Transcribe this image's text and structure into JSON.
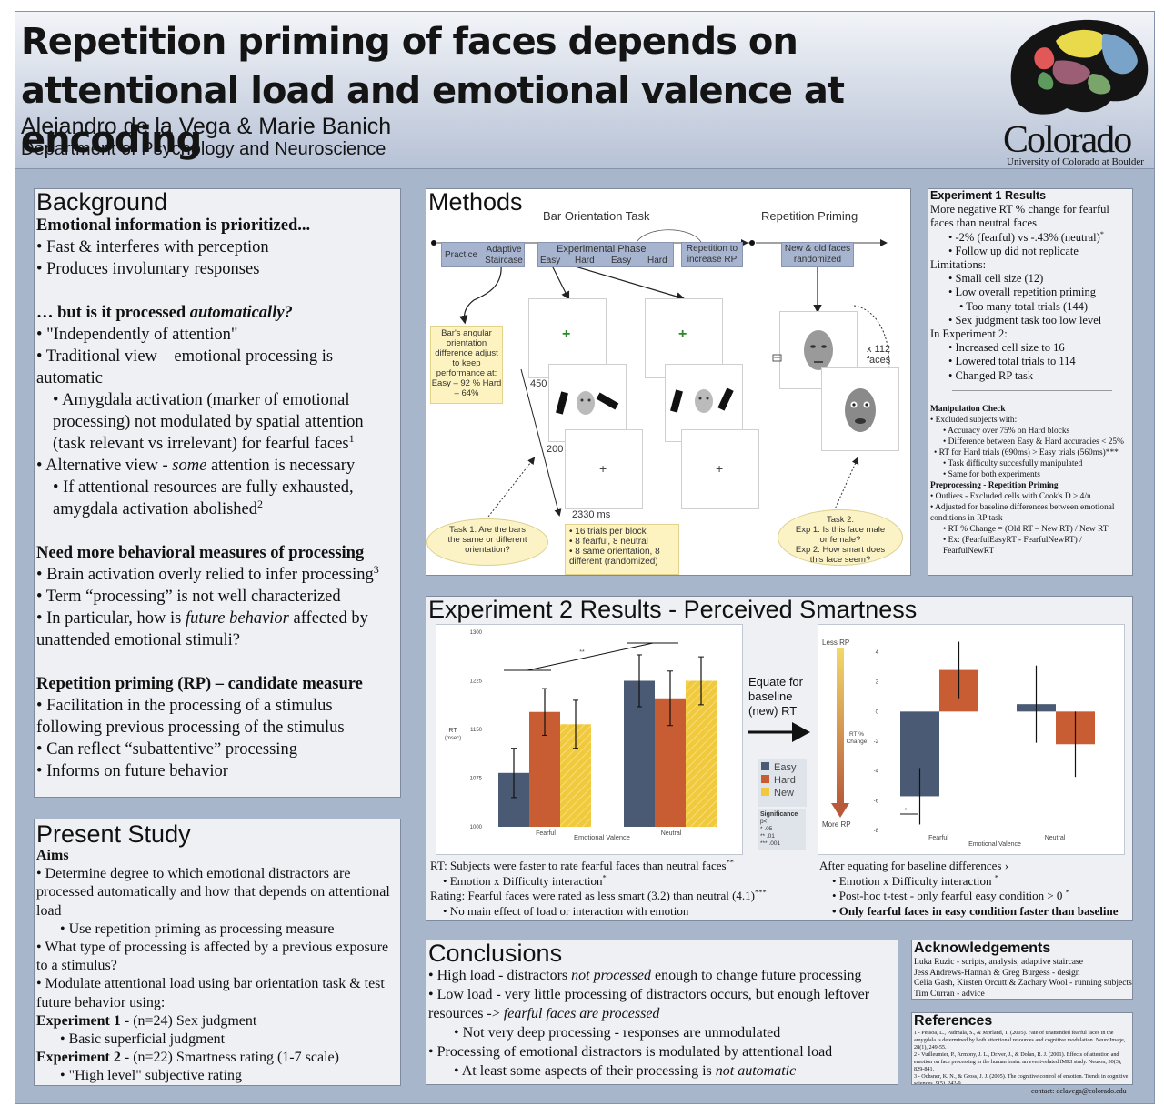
{
  "header": {
    "title": "Repetition priming of faces depends on attentional load and emotional valence at encoding",
    "authors": "Alejandro de la Vega & Marie Banich",
    "department": "Department of Psychology and Neuroscience",
    "logo_word": "Colorado",
    "logo_sub": "University of Colorado at Boulder"
  },
  "background": {
    "heading": "Background",
    "s1": "Emotional information is prioritized...",
    "s1_b1": "• Fast & interferes with perception",
    "s1_b2": "• Produces involuntary responses",
    "s2_pre": "… but is it processed ",
    "s2_em": "automatically?",
    "s2_b1": "• \"Independently of attention\"",
    "s2_b2": "• Traditional view – emotional processing is automatic",
    "s2_b3": "• Amygdala activation (marker of emotional processing) not modulated by spatial attention (task relevant vs irrelevant) for fearful faces",
    "s2_b3_sup": "1",
    "s2_b4_pre": "• Alternative view - ",
    "s2_b4_em": "some",
    "s2_b4_post": " attention is necessary",
    "s2_b5": "• If attentional resources are fully exhausted, amygdala activation abolished",
    "s2_b5_sup": "2",
    "s3": "Need more behavioral measures of processing",
    "s3_b1": "• Brain activation overly relied to infer processing",
    "s3_b1_sup": "3",
    "s3_b2": "• Term “processing” is not well characterized",
    "s3_b3_pre": "• In particular, how is ",
    "s3_b3_em": "future behavior",
    "s3_b3_post": " affected by unattended emotional stimuli?",
    "s4": "Repetition priming (RP) – candidate measure",
    "s4_b1": "• Facilitation in the processing of a stimulus following previous processing of the stimulus",
    "s4_b2": "• Can reflect “subattentive” processing",
    "s4_b3": "• Informs on future behavior"
  },
  "present_study": {
    "heading": "Present Study",
    "aims": "Aims",
    "a1": "• Determine degree to which emotional distractors are processed automatically and how that depends on attentional load",
    "a1_sub": "• Use repetition priming as processing measure",
    "a2": "• What type of processing is affected by a previous exposure to a stimulus?",
    "a3": "• Modulate attentional load using bar orientation task & test future behavior using:",
    "e1_label": "Experiment 1",
    "e1_text": " - (n=24) Sex judgment",
    "e1_sub": "• Basic superficial judgment",
    "e2_label": "Experiment 2",
    "e2_text": " - (n=22) Smartness rating (1-7 scale)",
    "e2_sub": "• \"High level\" subjective rating"
  },
  "methods": {
    "heading": "Methods",
    "bar_task": "Bar Orientation Task",
    "rep_priming": "Repetition Priming",
    "practice": "Practice",
    "adaptive": "Adaptive Staircase",
    "exp_phase": "Experimental Phase",
    "easy": "Easy",
    "hard": "Hard",
    "rep_increase": "Repetition to increase RP",
    "new_old": "New & old faces randomized",
    "yellow_box": "Bar's angular orientation difference adjust to keep performance at: Easy – 92 % Hard – 64%",
    "t450": "450",
    "t200": "200",
    "t2330": "2330 ms",
    "x112": "x 112 faces",
    "trials_b1": "• 16 trials per block",
    "trials_b2": "• 8 fearful, 8 neutral",
    "trials_b3": "• 8 same orientation, 8 different (randomized)",
    "task1": "Task 1: Are the bars the same or different orientation?",
    "task2_l1": "Task 2:",
    "task2_l2": "Exp 1: Is this face male or female?",
    "task2_l3": "Exp 2: How smart does this face seem?",
    "plus": "+"
  },
  "exp1": {
    "heading": "Experiment 1 Results",
    "l1": "More negative RT % change for fearful faces than neutral faces",
    "l2": "• -2% (fearful) vs -.43% (neutral)",
    "l2_sup": "*",
    "l3": "• Follow up did not replicate",
    "l4": "Limitations:",
    "l5": "• Small cell size (12)",
    "l6": "• Low overall repetition priming",
    "l7": "• Too many total trials (144)",
    "l8": "• Sex judgment task too low level",
    "l9": "In Experiment 2:",
    "l10": "• Increased cell size to 16",
    "l11": "• Lowered total trials to 114",
    "l12": "• Changed RP task",
    "mc_head": "Manipulation Check",
    "mc1": "• Excluded subjects with:",
    "mc2": "• Accuracy over 75% on Hard blocks",
    "mc3": "• Difference between Easy & Hard accuracies < 25%",
    "mc4": "• RT for Hard trials (690ms) > Easy trials (560ms)***",
    "mc5": "• Task difficulty succesfully manipulated",
    "mc6": "• Same for both experiments",
    "pp_head": "Preprocessing - Repetition Priming",
    "pp1": "• Outliers - Excluded cells with Cook's D > 4/n",
    "pp2": "• Adjusted for baseline differences between emotional conditions in RP task",
    "pp3": "• RT % Change = (Old RT – New RT) / New RT",
    "pp4": "• Ex: (FearfulEasyRT - FearfulNewRT) / FearfulNewRT"
  },
  "exp2": {
    "heading": "Experiment 2 Results - Perceived Smartness",
    "equate": "Equate for baseline (new) RT",
    "legend": [
      "Easy",
      "Hard",
      "New"
    ],
    "sig_title": "Significance",
    "sig_lines": [
      "p<",
      "* .05",
      "** .01",
      "*** .001"
    ],
    "left_cap_1": "RT:  Subjects were faster to rate fearful faces than neutral faces",
    "left_cap_1_sup": "**",
    "left_cap_2": "• Emotion x Difficulty interaction",
    "left_cap_2_sup": "*",
    "left_cap_3": "Rating: Fearful faces were rated as less smart (3.2) than neutral (4.1)",
    "left_cap_3_sup": "***",
    "left_cap_4": "• No main effect of load or interaction with emotion",
    "right_cap_1": "After equating for baseline differences ›",
    "right_cap_2": "• Emotion x Difficulty interaction ",
    "right_cap_2_sup": "*",
    "right_cap_3": "• Post-hoc t-test - only fearful easy condition > 0 ",
    "right_cap_3_sup": "*",
    "right_cap_4": "• Only fearful faces in easy condition faster than baseline",
    "less_rp": "Less RP",
    "more_rp": "More RP",
    "rt_change": "RT % Change"
  },
  "chart_data": [
    {
      "type": "bar",
      "title": "",
      "xlabel": "Emotional Valence",
      "ylabel": "RT (msec)",
      "ylim": [
        1000,
        1300
      ],
      "yticks": [
        1000,
        1075,
        1150,
        1225,
        1300
      ],
      "categories": [
        "Fearful",
        "Neutral"
      ],
      "series": [
        {
          "name": "Easy",
          "values": [
            1083,
            1225
          ],
          "err": [
            38,
            40
          ]
        },
        {
          "name": "Hard",
          "values": [
            1177,
            1198
          ],
          "err": [
            36,
            42
          ]
        },
        {
          "name": "New",
          "values": [
            1158,
            1225
          ],
          "err": [
            37,
            37
          ]
        }
      ],
      "annotations": [
        "**"
      ],
      "colors": {
        "Easy": "#4a5a74",
        "Hard": "#c85c33",
        "New": "#f0c93c"
      },
      "legend": "right",
      "grid": false
    },
    {
      "type": "bar",
      "title": "",
      "xlabel": "Emotional Valence",
      "ylabel": "RT % Change",
      "ylim": [
        -8,
        4
      ],
      "yticks": [
        -8,
        -6,
        -4,
        -2,
        0,
        2,
        4
      ],
      "categories": [
        "Fearful",
        "Neutral"
      ],
      "series": [
        {
          "name": "Easy",
          "values": [
            -5.7,
            0.5
          ],
          "err": [
            1.9,
            2.6
          ]
        },
        {
          "name": "Hard",
          "values": [
            2.8,
            -2.2
          ],
          "err": [
            1.9,
            2.2
          ]
        }
      ],
      "annotations": [
        "*"
      ],
      "colors": {
        "Easy": "#4a5a74",
        "Hard": "#c85c33"
      },
      "grid": false
    }
  ],
  "conclusions": {
    "heading": "Conclusions",
    "c1_pre": "• High load - distractors ",
    "c1_em": "not processed",
    "c1_post": " enough to change future processing",
    "c2_pre": "• Low load - very little processing of distractors occurs, but enough leftover resources -> ",
    "c2_em": "fearful faces are processed",
    "c3": "• Not very deep processing - responses are unmodulated",
    "c4": "• Processing of emotional distractors is modulated by attentional load",
    "c5_pre": "• At least some aspects of their processing is ",
    "c5_em": "not automatic"
  },
  "acknowledgements": {
    "heading": "Acknowledgements",
    "lines": [
      "Luka Ruzic - scripts, analysis, adaptive staircase",
      "Jess Andrews-Hannah & Greg Burgess - design",
      "Celia Gash, Kirsten Orcutt & Zachary Wool - running subjects",
      "Tim Curran - advice"
    ]
  },
  "references": {
    "heading": "References",
    "lines": [
      "1 - Pessoa, L., Padmala, S., & Morland, T. (2005). Fate of unattended fearful faces in the amygdala is determined by both attentional resources and cognitive modulation. NeuroImage, 28(1), 249-55.",
      "2 - Vuilleumier, P., Armony, J. L., Driver, J., & Dolan, R. J. (2001). Effects of attention and emotion on face processing in the human brain: an event-related fMRI study. Neuron, 30(3), 829-841.",
      "3 - Ochsner, K. N., & Gross, J. J. (2005). The cognitive control of emotion. Trends in cognitive sciences, 9(5), 242-9."
    ]
  },
  "contact": "contact: delavega@colorado.edu"
}
